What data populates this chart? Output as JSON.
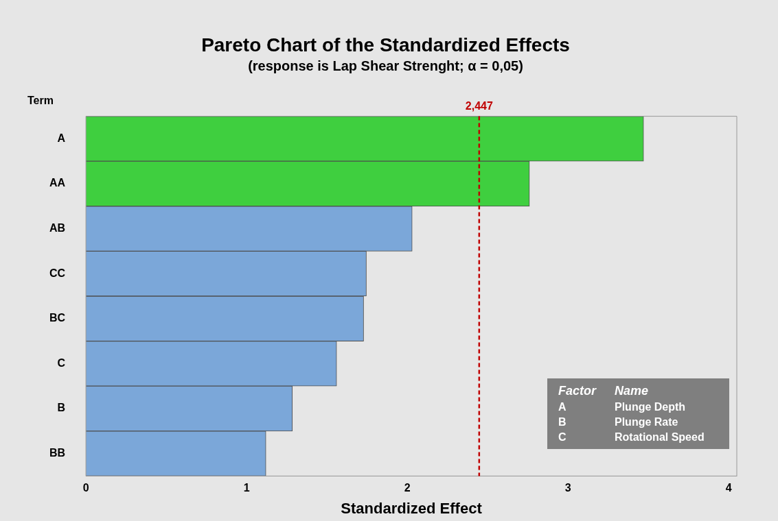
{
  "chart_data": {
    "type": "bar",
    "orientation": "horizontal",
    "title": "Pareto Chart of the Standardized Effects",
    "subtitle": "(response is Lap Shear Strenght; α = 0,05)",
    "xlabel": "Standardized Effect",
    "ylabel": "Term",
    "categories": [
      "A",
      "AA",
      "AB",
      "CC",
      "BC",
      "C",
      "B",
      "BB"
    ],
    "values": [
      3.47,
      2.76,
      2.03,
      1.745,
      1.728,
      1.56,
      1.285,
      1.12
    ],
    "colors": [
      "#3fcf3f",
      "#3fcf3f",
      "#7ba7d9",
      "#7ba7d9",
      "#7ba7d9",
      "#7ba7d9",
      "#7ba7d9",
      "#7ba7d9"
    ],
    "xlim": [
      0,
      4.05
    ],
    "xticks": [
      0,
      1,
      2,
      3,
      4
    ],
    "grid": false,
    "legend": false,
    "ref_lines": [
      {
        "axis": "x",
        "value": 2.447,
        "label": "2,447",
        "color": "#c00000",
        "line_style": "dashed"
      }
    ],
    "annotations": [
      "Factor",
      "Name",
      "A",
      "Plunge Depth",
      "B",
      "Plunge Rate",
      "C",
      "Rotational Speed"
    ]
  }
}
